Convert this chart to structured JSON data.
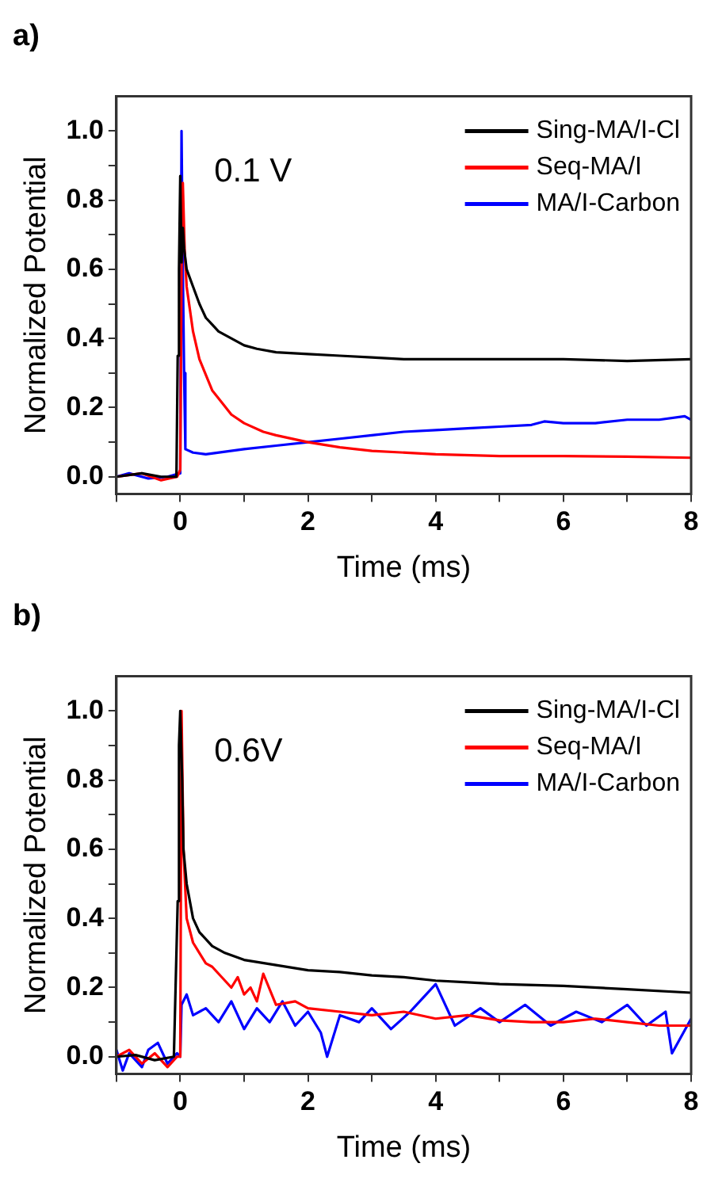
{
  "chart_data": [
    {
      "type": "line",
      "title": "a)",
      "xlabel": "Time (ms)",
      "ylabel": "Normalized Potential",
      "annotations": [
        "0.1 V"
      ],
      "xlim": [
        -1,
        8
      ],
      "ylim": [
        -0.05,
        1.1
      ],
      "xticks": [
        {
          "value": -1,
          "label": null
        },
        0,
        {
          "value": 1,
          "label": null
        },
        2,
        {
          "value": 3,
          "label": null
        },
        4,
        {
          "value": 5,
          "label": null
        },
        6,
        {
          "value": 7,
          "label": null
        },
        8
      ],
      "yticks": [
        {
          "value": 0,
          "label": "0.0"
        },
        {
          "value": 0.1,
          "label": null
        },
        {
          "value": 0.2,
          "label": "0.2"
        },
        {
          "value": 0.3,
          "label": null
        },
        {
          "value": 0.4,
          "label": "0.4"
        },
        {
          "value": 0.5,
          "label": null
        },
        {
          "value": 0.6,
          "label": "0.6"
        },
        {
          "value": 0.7,
          "label": null
        },
        {
          "value": 0.8,
          "label": "0.8"
        },
        {
          "value": 0.9,
          "label": null
        },
        {
          "value": 1,
          "label": "1.0"
        }
      ],
      "grid": false,
      "legend": "top right",
      "marker": "none",
      "line_style": "solid",
      "series": [
        {
          "name": "Sing-MA/I-Cl",
          "color": "#000000",
          "x": [
            -1,
            -0.6,
            -0.3,
            -0.06,
            -0.04,
            -0.02,
            0,
            0.02,
            0.04,
            0.06,
            0.1,
            0.2,
            0.3,
            0.4,
            0.5,
            0.6,
            0.8,
            1,
            1.2,
            1.5,
            2,
            2.5,
            3,
            3.5,
            4,
            5,
            6,
            7,
            8
          ],
          "values": [
            0,
            0.01,
            0,
            0,
            0.35,
            0.6,
            0.87,
            0.62,
            0.72,
            0.66,
            0.6,
            0.55,
            0.5,
            0.46,
            0.44,
            0.42,
            0.4,
            0.38,
            0.37,
            0.36,
            0.355,
            0.35,
            0.345,
            0.34,
            0.34,
            0.34,
            0.34,
            0.335,
            0.34
          ]
        },
        {
          "name": "Seq-MA/I",
          "color": "#ff0000",
          "x": [
            -1,
            -0.6,
            -0.3,
            -0.05,
            0,
            0.02,
            0.04,
            0.07,
            0.1,
            0.2,
            0.3,
            0.5,
            0.8,
            1,
            1.3,
            1.5,
            2,
            2.5,
            3,
            4,
            5,
            6,
            7,
            8
          ],
          "values": [
            0,
            0.01,
            -0.01,
            0,
            0.02,
            0.6,
            0.85,
            0.65,
            0.55,
            0.42,
            0.34,
            0.25,
            0.18,
            0.155,
            0.13,
            0.12,
            0.1,
            0.085,
            0.075,
            0.065,
            0.06,
            0.06,
            0.058,
            0.055
          ]
        },
        {
          "name": "MA/I-Carbon",
          "color": "#0000ff",
          "x": [
            -1,
            -0.8,
            -0.5,
            -0.2,
            0,
            0.02,
            0.04,
            0.06,
            0.08,
            0.2,
            0.4,
            1,
            1.5,
            2,
            2.5,
            3,
            3.5,
            4,
            4.5,
            5,
            5.5,
            5.7,
            6,
            6.5,
            7,
            7.5,
            7.9,
            8
          ],
          "values": [
            0,
            0.01,
            -0.005,
            0,
            0.01,
            1,
            0.6,
            0.3,
            0.08,
            0.07,
            0.065,
            0.08,
            0.09,
            0.1,
            0.11,
            0.12,
            0.13,
            0.135,
            0.14,
            0.145,
            0.15,
            0.16,
            0.155,
            0.155,
            0.165,
            0.165,
            0.175,
            0.165
          ]
        }
      ]
    },
    {
      "type": "line",
      "title": "b)",
      "xlabel": "Time (ms)",
      "ylabel": "Normalized Potential",
      "annotations": [
        "0.6V"
      ],
      "xlim": [
        -1,
        8
      ],
      "ylim": [
        -0.05,
        1.1
      ],
      "xticks": [
        {
          "value": -1,
          "label": null
        },
        0,
        {
          "value": 1,
          "label": null
        },
        2,
        {
          "value": 3,
          "label": null
        },
        4,
        {
          "value": 5,
          "label": null
        },
        6,
        {
          "value": 7,
          "label": null
        },
        8
      ],
      "yticks": [
        {
          "value": 0,
          "label": "0.0"
        },
        {
          "value": 0.1,
          "label": null
        },
        {
          "value": 0.2,
          "label": "0.2"
        },
        {
          "value": 0.3,
          "label": null
        },
        {
          "value": 0.4,
          "label": "0.4"
        },
        {
          "value": 0.5,
          "label": null
        },
        {
          "value": 0.6,
          "label": "0.6"
        },
        {
          "value": 0.7,
          "label": null
        },
        {
          "value": 0.8,
          "label": "0.8"
        },
        {
          "value": 0.9,
          "label": null
        },
        {
          "value": 1,
          "label": "1.0"
        }
      ],
      "grid": false,
      "legend": "top right",
      "marker": "none",
      "line_style": "solid",
      "series": [
        {
          "name": "Sing-MA/I-Cl",
          "color": "#000000",
          "x": [
            -1,
            -0.7,
            -0.4,
            -0.1,
            -0.04,
            -0.02,
            0,
            0.03,
            0.05,
            0.1,
            0.2,
            0.3,
            0.5,
            0.7,
            1,
            1.5,
            2,
            2.5,
            3,
            3.5,
            4,
            4.5,
            5,
            6,
            7,
            8
          ],
          "values": [
            0,
            0.005,
            -0.01,
            0,
            0.45,
            0.9,
            1,
            0.8,
            0.6,
            0.5,
            0.4,
            0.36,
            0.32,
            0.3,
            0.28,
            0.265,
            0.25,
            0.245,
            0.235,
            0.23,
            0.22,
            0.215,
            0.21,
            0.205,
            0.195,
            0.185
          ]
        },
        {
          "name": "Seq-MA/I",
          "color": "#ff0000",
          "x": [
            -1,
            -0.8,
            -0.6,
            -0.4,
            -0.2,
            -0.05,
            0,
            0.02,
            0.05,
            0.1,
            0.2,
            0.3,
            0.4,
            0.5,
            0.6,
            0.7,
            0.8,
            0.9,
            1,
            1.1,
            1.2,
            1.3,
            1.5,
            1.8,
            2,
            2.5,
            3,
            3.5,
            4,
            4.5,
            5,
            5.5,
            6,
            6.5,
            7,
            7.5,
            8
          ],
          "values": [
            0,
            0.02,
            -0.02,
            0.01,
            -0.03,
            0,
            0,
            1,
            0.6,
            0.4,
            0.33,
            0.3,
            0.27,
            0.26,
            0.24,
            0.22,
            0.2,
            0.23,
            0.18,
            0.2,
            0.16,
            0.24,
            0.15,
            0.16,
            0.14,
            0.13,
            0.12,
            0.13,
            0.11,
            0.12,
            0.105,
            0.1,
            0.1,
            0.11,
            0.1,
            0.09,
            0.09
          ]
        },
        {
          "name": "MA/I-Carbon",
          "color": "#0000ff",
          "x": [
            -1,
            -0.9,
            -0.8,
            -0.6,
            -0.5,
            -0.35,
            -0.2,
            -0.05,
            0,
            0.02,
            0.1,
            0.2,
            0.4,
            0.6,
            0.8,
            1,
            1.2,
            1.4,
            1.6,
            1.8,
            2,
            2.2,
            2.3,
            2.5,
            2.8,
            3,
            3.3,
            3.6,
            4,
            4.3,
            4.7,
            5,
            5.4,
            5.8,
            6.2,
            6.6,
            7,
            7.3,
            7.6,
            7.7,
            8
          ],
          "values": [
            0.02,
            -0.04,
            0.01,
            -0.03,
            0.02,
            0.04,
            -0.02,
            0.01,
            0.0,
            0.15,
            0.18,
            0.12,
            0.14,
            0.1,
            0.16,
            0.08,
            0.14,
            0.1,
            0.16,
            0.09,
            0.13,
            0.07,
            0.0,
            0.12,
            0.1,
            0.14,
            0.08,
            0.13,
            0.21,
            0.09,
            0.14,
            0.1,
            0.15,
            0.09,
            0.13,
            0.1,
            0.15,
            0.09,
            0.13,
            0.01,
            0.11
          ]
        }
      ]
    }
  ]
}
